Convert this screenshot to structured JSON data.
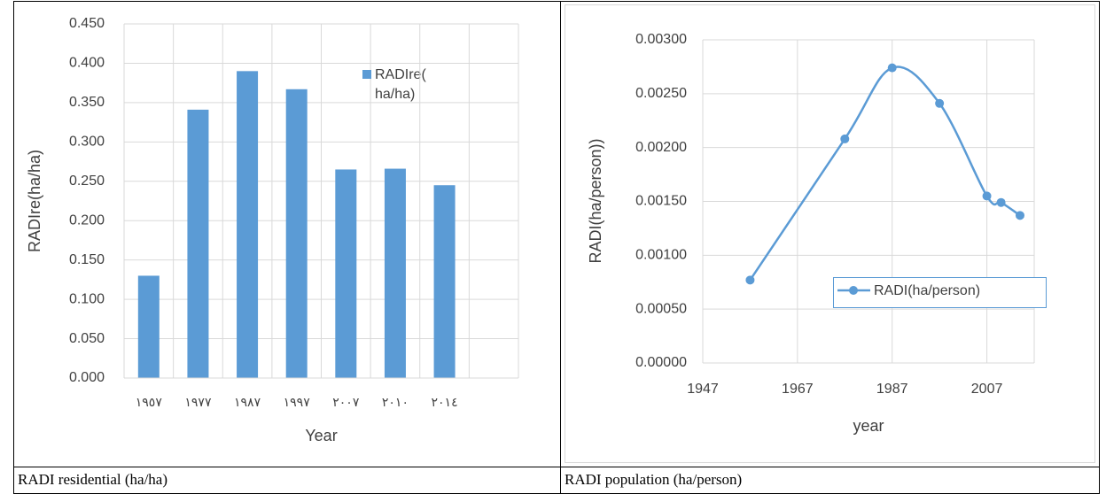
{
  "chart_data": [
    {
      "type": "bar",
      "categories": [
        "١٩٥٧",
        "١٩٧٧",
        "١٩٨٧",
        "١٩٩٧",
        "٢٠٠٧",
        "٢٠١٠",
        "٢٠١٤",
        null
      ],
      "series": [
        {
          "name": "RADIre( ha/ha)",
          "color": "#5b9bd5",
          "values": [
            0.13,
            0.341,
            0.39,
            0.367,
            0.265,
            0.266,
            0.245,
            null
          ]
        }
      ],
      "ylim": [
        0,
        0.45
      ],
      "yticks": [
        {
          "value": 0,
          "label": "0.000"
        },
        {
          "value": 0.05,
          "label": "0.050"
        },
        {
          "value": 0.1,
          "label": "0.100"
        },
        {
          "value": 0.15,
          "label": "0.150"
        },
        {
          "value": 0.2,
          "label": "0.200"
        },
        {
          "value": 0.25,
          "label": "0.250"
        },
        {
          "value": 0.3,
          "label": "0.300"
        },
        {
          "value": 0.35,
          "label": "0.350"
        },
        {
          "value": 0.4,
          "label": "0.400"
        },
        {
          "value": 0.45,
          "label": "0.450"
        }
      ],
      "x_label": "Year",
      "y_label": "RADIre(ha/ha)",
      "grid": true,
      "legend": "upper right"
    },
    {
      "type": "line",
      "x": [
        1957,
        1977,
        1987,
        1997,
        2007,
        2010,
        2014
      ],
      "series": [
        {
          "name": "RADI(ha/person)",
          "color": "#5b9bd5",
          "values": [
            0.00077,
            0.00208,
            0.00274,
            0.00241,
            0.00155,
            0.00149,
            0.00137
          ]
        }
      ],
      "xlim": [
        1947,
        2017
      ],
      "xticks": [
        1947,
        1967,
        1987,
        2007
      ],
      "ylim": [
        0,
        0.003
      ],
      "yticks": [
        {
          "value": 0,
          "label": "0.00000"
        },
        {
          "value": 0.0005,
          "label": "0.00050"
        },
        {
          "value": 0.001,
          "label": "0.00100"
        },
        {
          "value": 0.0015,
          "label": "0.00150"
        },
        {
          "value": 0.002,
          "label": "0.00200"
        },
        {
          "value": 0.0025,
          "label": "0.00250"
        },
        {
          "value": 0.003,
          "label": "0.00300"
        }
      ],
      "x_label": "year",
      "y_label": "RADI(ha/person))",
      "grid": true,
      "smooth": true,
      "legend": "lower right"
    }
  ],
  "table": {
    "captions": [
      "RADI residential (ha/ha)",
      "RADI population (ha/person)"
    ]
  }
}
